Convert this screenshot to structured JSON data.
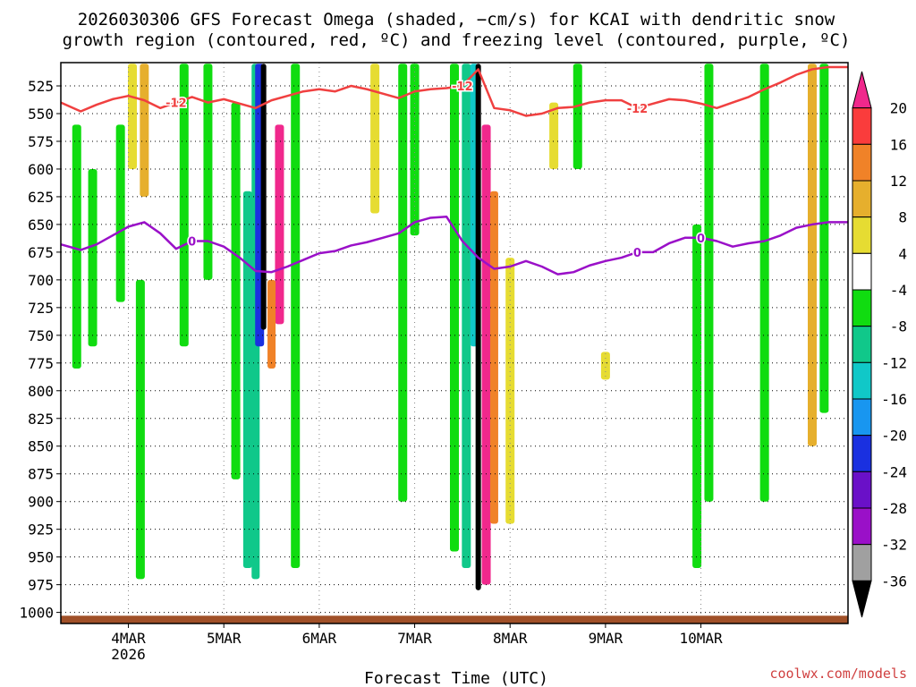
{
  "chart_data": {
    "type": "heatmap",
    "title_line1": "2026030306 GFS Forecast Omega (shaded, −cm/s) for KCAI with dendritic snow",
    "title_line2": "growth region (contoured, red, ºC) and freezing level (contoured, purple, ºC)",
    "xlabel": "Forecast Time (UTC)",
    "credit": "coolwx.com/models",
    "x_range_hours": [
      -17,
      181
    ],
    "y_range_hpa": [
      1010,
      504
    ],
    "y_ticks": [
      525,
      550,
      575,
      600,
      625,
      650,
      675,
      700,
      725,
      750,
      775,
      800,
      825,
      850,
      875,
      900,
      925,
      950,
      975,
      1000
    ],
    "x_ticks": [
      {
        "hour": 0,
        "label": "4MAR",
        "sub": "2026"
      },
      {
        "hour": 24,
        "label": "5MAR",
        "sub": ""
      },
      {
        "hour": 48,
        "label": "6MAR",
        "sub": ""
      },
      {
        "hour": 72,
        "label": "7MAR",
        "sub": ""
      },
      {
        "hour": 96,
        "label": "8MAR",
        "sub": ""
      },
      {
        "hour": 120,
        "label": "9MAR",
        "sub": ""
      },
      {
        "hour": 144,
        "label": "10MAR",
        "sub": ""
      }
    ],
    "colorbar": {
      "levels": [
        -36,
        -32,
        -28,
        -24,
        -20,
        -16,
        -12,
        -8,
        -4,
        4,
        8,
        12,
        16,
        20
      ],
      "colors": [
        "#000000",
        "#a0a0a0",
        "#9a10c8",
        "#6a10c8",
        "#1a30e0",
        "#1896f0",
        "#10c8c8",
        "#10c88a",
        "#10dc10",
        "#ffffff",
        "#e6dc32",
        "#e6af2d",
        "#f08228",
        "#fa3c3c",
        "#f0288c"
      ]
    },
    "omega_features": [
      {
        "hour": -13,
        "p_top": 560,
        "p_bot": 780,
        "value": -6
      },
      {
        "hour": -9,
        "p_top": 600,
        "p_bot": 760,
        "value": -6
      },
      {
        "hour": -2,
        "p_top": 560,
        "p_bot": 720,
        "value": -7
      },
      {
        "hour": 1,
        "p_top": 505,
        "p_bot": 600,
        "value": 6
      },
      {
        "hour": 4,
        "p_top": 505,
        "p_bot": 625,
        "value": 10
      },
      {
        "hour": 3,
        "p_top": 700,
        "p_bot": 970,
        "value": -7
      },
      {
        "hour": 14,
        "p_top": 505,
        "p_bot": 760,
        "value": -7
      },
      {
        "hour": 20,
        "p_top": 505,
        "p_bot": 700,
        "value": -6
      },
      {
        "hour": 27,
        "p_top": 540,
        "p_bot": 880,
        "value": -7
      },
      {
        "hour": 30,
        "p_top": 620,
        "p_bot": 960,
        "value": -9
      },
      {
        "hour": 32,
        "p_top": 505,
        "p_bot": 970,
        "value": -12
      },
      {
        "hour": 33,
        "p_top": 505,
        "p_bot": 760,
        "value": -22
      },
      {
        "hour": 34,
        "p_top": 505,
        "p_bot": 745,
        "value": -38
      },
      {
        "hour": 38,
        "p_top": 560,
        "p_bot": 740,
        "value": 22
      },
      {
        "hour": 36,
        "p_top": 700,
        "p_bot": 780,
        "value": 13
      },
      {
        "hour": 42,
        "p_top": 505,
        "p_bot": 960,
        "value": -7
      },
      {
        "hour": 62,
        "p_top": 505,
        "p_bot": 640,
        "value": 6
      },
      {
        "hour": 69,
        "p_top": 505,
        "p_bot": 900,
        "value": -7
      },
      {
        "hour": 72,
        "p_top": 505,
        "p_bot": 660,
        "value": -6
      },
      {
        "hour": 82,
        "p_top": 505,
        "p_bot": 945,
        "value": -7
      },
      {
        "hour": 85,
        "p_top": 505,
        "p_bot": 960,
        "value": -9
      },
      {
        "hour": 87,
        "p_top": 505,
        "p_bot": 760,
        "value": -14
      },
      {
        "hour": 88,
        "p_top": 505,
        "p_bot": 980,
        "value": -38
      },
      {
        "hour": 90,
        "p_top": 560,
        "p_bot": 975,
        "value": 22
      },
      {
        "hour": 92,
        "p_top": 620,
        "p_bot": 920,
        "value": 13
      },
      {
        "hour": 96,
        "p_top": 680,
        "p_bot": 920,
        "value": 6
      },
      {
        "hour": 107,
        "p_top": 540,
        "p_bot": 600,
        "value": 6
      },
      {
        "hour": 113,
        "p_top": 505,
        "p_bot": 600,
        "value": -6
      },
      {
        "hour": 120,
        "p_top": 765,
        "p_bot": 790,
        "value": 6
      },
      {
        "hour": 146,
        "p_top": 505,
        "p_bot": 900,
        "value": -6
      },
      {
        "hour": 143,
        "p_top": 650,
        "p_bot": 960,
        "value": -7
      },
      {
        "hour": 160,
        "p_top": 505,
        "p_bot": 900,
        "value": -6
      },
      {
        "hour": 172,
        "p_top": 505,
        "p_bot": 850,
        "value": 10
      },
      {
        "hour": 175,
        "p_top": 505,
        "p_bot": 820,
        "value": -6
      }
    ],
    "dgz_contour": {
      "label": "-12",
      "hours": [
        -17,
        -12,
        -8,
        -4,
        0,
        4,
        8,
        12,
        16,
        20,
        24,
        28,
        32,
        36,
        40,
        44,
        48,
        52,
        56,
        60,
        64,
        68,
        72,
        76,
        80,
        84,
        88,
        92,
        96,
        100,
        104,
        108,
        112,
        116,
        120,
        124,
        128,
        132,
        136,
        140,
        144,
        148,
        152,
        156,
        160,
        164,
        168,
        172,
        176,
        181
      ],
      "pressures": [
        540,
        548,
        542,
        537,
        534,
        538,
        545,
        540,
        535,
        540,
        537,
        541,
        545,
        538,
        534,
        530,
        528,
        530,
        525,
        528,
        532,
        536,
        530,
        528,
        527,
        525,
        510,
        545,
        547,
        552,
        550,
        545,
        544,
        540,
        538,
        538,
        545,
        541,
        537,
        538,
        541,
        545,
        540,
        535,
        528,
        522,
        515,
        510,
        508,
        508
      ]
    },
    "freezing_contour": {
      "label": "0",
      "hours": [
        -17,
        -12,
        -8,
        -4,
        0,
        4,
        8,
        12,
        16,
        20,
        24,
        28,
        32,
        36,
        40,
        44,
        48,
        52,
        56,
        60,
        64,
        68,
        72,
        76,
        80,
        84,
        88,
        92,
        96,
        100,
        104,
        108,
        112,
        116,
        120,
        124,
        128,
        132,
        136,
        140,
        144,
        148,
        152,
        156,
        160,
        164,
        168,
        172,
        176,
        181
      ],
      "pressures": [
        668,
        673,
        668,
        660,
        652,
        648,
        658,
        672,
        665,
        665,
        670,
        680,
        692,
        693,
        688,
        682,
        676,
        674,
        669,
        666,
        662,
        658,
        648,
        644,
        643,
        665,
        680,
        690,
        688,
        683,
        688,
        695,
        693,
        687,
        683,
        680,
        675,
        675,
        667,
        662,
        662,
        665,
        670,
        667,
        665,
        660,
        653,
        650,
        648,
        648
      ]
    },
    "terrain_hpa": 1003
  }
}
